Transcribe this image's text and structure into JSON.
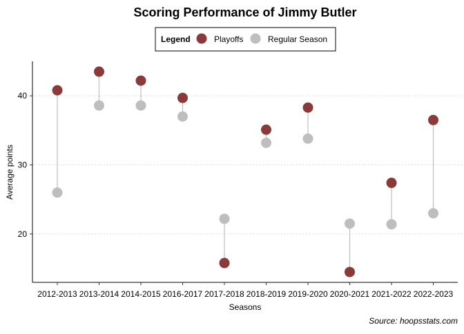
{
  "chart_data": {
    "type": "scatter",
    "title": "Scoring Performance of Jimmy Butler",
    "xlabel": "Seasons",
    "ylabel": "Average points",
    "caption": "Source: hoopsstats.com",
    "legend": {
      "title": "Legend",
      "placement": "top-center",
      "items": [
        {
          "label": "Playoffs",
          "color": "#8b3a3a"
        },
        {
          "label": "Regular Season",
          "color": "#bebebe"
        }
      ]
    },
    "categories": [
      "2012-2013",
      "2013-2014",
      "2014-2015",
      "2016-2017",
      "2017-2018",
      "2018-2019",
      "2019-2020",
      "2020-2021",
      "2021-2022",
      "2022-2023"
    ],
    "series": [
      {
        "name": "Playoffs",
        "color": "#8b3a3a",
        "values": [
          40.8,
          43.5,
          42.2,
          39.7,
          15.8,
          35.1,
          38.3,
          14.5,
          27.4,
          36.5
        ]
      },
      {
        "name": "Regular Season",
        "color": "#bebebe",
        "values": [
          26.0,
          38.6,
          38.6,
          37.0,
          22.2,
          33.2,
          33.8,
          21.5,
          21.4,
          23.0
        ]
      }
    ],
    "yticks": [
      20,
      30,
      40
    ],
    "ylim": [
      13.0,
      45.0
    ],
    "grid": "horizontal-dotted",
    "segment_color": "#bebebe"
  }
}
